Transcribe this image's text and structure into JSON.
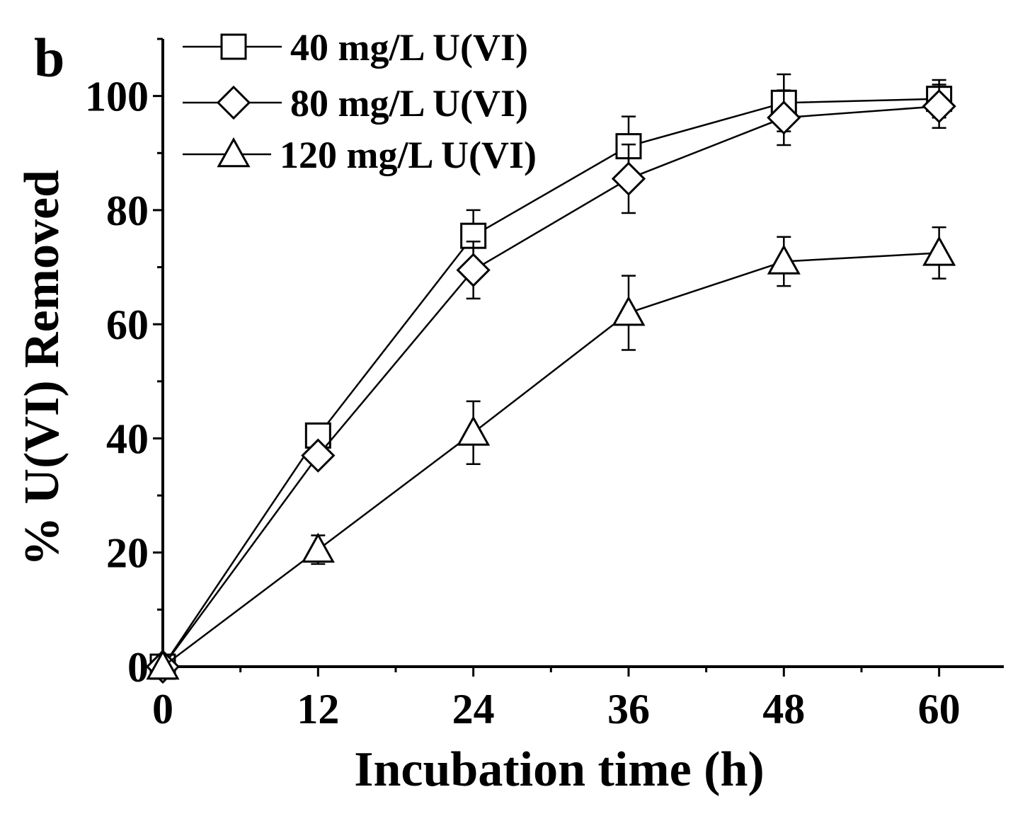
{
  "panel_label": "b",
  "chart_data": {
    "type": "line",
    "title": "",
    "xlabel": "Incubation time (h)",
    "ylabel": "% U(VI) Removed",
    "xlim": [
      0,
      65
    ],
    "ylim": [
      0,
      110
    ],
    "xticks": [
      0,
      12,
      24,
      36,
      48,
      60
    ],
    "yticks": [
      0,
      20,
      40,
      60,
      80,
      100
    ],
    "x": [
      0,
      12,
      24,
      36,
      48,
      60
    ],
    "series": [
      {
        "name": "40 mg/L U(VI)",
        "marker": "square",
        "values": [
          0,
          40.5,
          75.5,
          91.2,
          98.8,
          99.5
        ],
        "errors": [
          0,
          1.8,
          4.5,
          5.2,
          5.0,
          3.3
        ]
      },
      {
        "name": "80 mg/L U(VI)",
        "marker": "diamond",
        "values": [
          0,
          37,
          69.5,
          85.5,
          96.2,
          98.2
        ],
        "errors": [
          0,
          1.5,
          5.0,
          6.0,
          4.8,
          3.8
        ]
      },
      {
        "name": "120 mg/L U(VI)",
        "marker": "triangle",
        "values": [
          0,
          20.5,
          41,
          62,
          71,
          72.5
        ],
        "errors": [
          0,
          2.5,
          5.5,
          6.5,
          4.3,
          4.5
        ]
      }
    ],
    "legend_position": "top-left"
  }
}
